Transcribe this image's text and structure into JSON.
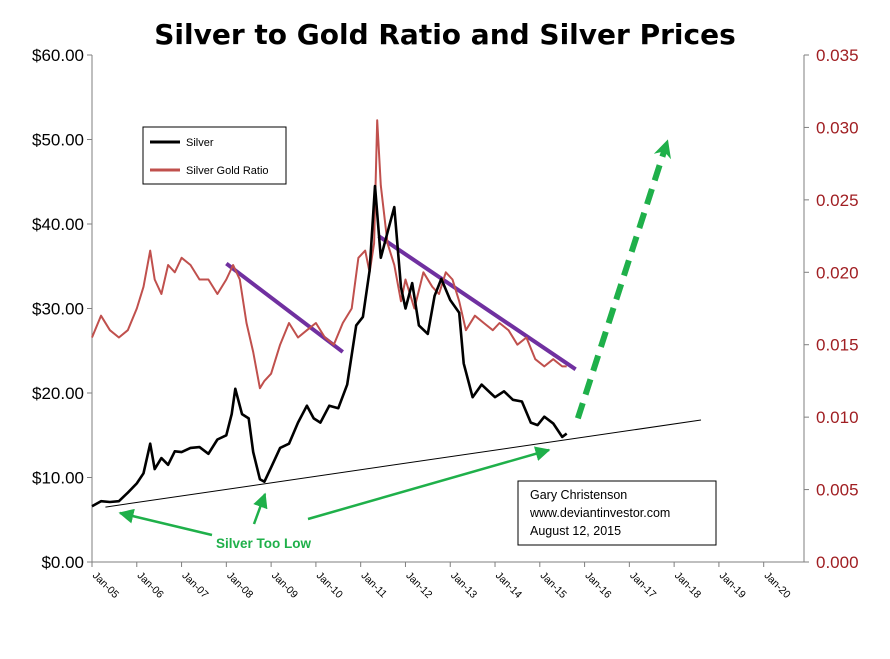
{
  "chart_data": {
    "type": "line",
    "title": "Silver to Gold Ratio and Silver Prices",
    "colors": {
      "silver": "#000000",
      "ratio": "#c0504d",
      "axis_right": "#a01e22",
      "trend_purple": "#7030a0",
      "annotation_green": "#1fb04a"
    },
    "y_left": {
      "ylim": [
        0,
        60
      ],
      "ticks": [
        0,
        10,
        20,
        30,
        40,
        50,
        60
      ],
      "tick_labels": [
        "$0.00",
        "$10.00",
        "$20.00",
        "$30.00",
        "$40.00",
        "$50.00",
        "$60.00"
      ]
    },
    "y_right": {
      "ylim": [
        0,
        0.035
      ],
      "ticks": [
        0,
        0.005,
        0.01,
        0.015,
        0.02,
        0.025,
        0.03,
        0.035
      ],
      "tick_labels": [
        "0.000",
        "0.005",
        "0.010",
        "0.015",
        "0.020",
        "0.025",
        "0.030",
        "0.035"
      ]
    },
    "x_axis": {
      "xlim": [
        2005.0,
        2020.9
      ],
      "ticks": [
        2005,
        2006,
        2007,
        2008,
        2009,
        2010,
        2011,
        2012,
        2013,
        2014,
        2015,
        2016,
        2017,
        2018,
        2019,
        2020
      ],
      "tick_labels": [
        "Jan-05",
        "Jan-06",
        "Jan-07",
        "Jan-08",
        "Jan-09",
        "Jan-10",
        "Jan-11",
        "Jan-12",
        "Jan-13",
        "Jan-14",
        "Jan-15",
        "Jan-16",
        "Jan-17",
        "Jan-18",
        "Jan-19",
        "Jan-20"
      ]
    },
    "legend": {
      "placement": "upper-left",
      "entries": [
        "Silver",
        "Silver Gold Ratio"
      ]
    },
    "series": [
      {
        "name": "Silver",
        "axis": "left",
        "x": [
          2005.0,
          2005.2,
          2005.4,
          2005.6,
          2005.8,
          2006.0,
          2006.15,
          2006.3,
          2006.4,
          2006.55,
          2006.7,
          2006.85,
          2007.0,
          2007.2,
          2007.4,
          2007.6,
          2007.8,
          2008.0,
          2008.12,
          2008.2,
          2008.35,
          2008.5,
          2008.6,
          2008.75,
          2008.85,
          2009.0,
          2009.2,
          2009.4,
          2009.6,
          2009.8,
          2009.95,
          2010.1,
          2010.3,
          2010.5,
          2010.7,
          2010.9,
          2011.05,
          2011.2,
          2011.32,
          2011.45,
          2011.6,
          2011.75,
          2011.9,
          2012.0,
          2012.15,
          2012.3,
          2012.5,
          2012.65,
          2012.8,
          2013.0,
          2013.2,
          2013.3,
          2013.5,
          2013.7,
          2013.9,
          2014.0,
          2014.2,
          2014.4,
          2014.6,
          2014.8,
          2014.95,
          2015.1,
          2015.3,
          2015.5,
          2015.6
        ],
        "values": [
          6.6,
          7.2,
          7.1,
          7.2,
          8.2,
          9.3,
          10.5,
          14.0,
          11.0,
          12.3,
          11.5,
          13.1,
          13.0,
          13.5,
          13.6,
          12.8,
          14.5,
          15.0,
          17.5,
          20.5,
          17.5,
          17.0,
          13.0,
          9.8,
          9.5,
          11.2,
          13.5,
          14.0,
          16.5,
          18.5,
          17.0,
          16.5,
          18.5,
          18.2,
          21.0,
          28.0,
          29.0,
          34.5,
          44.5,
          36.0,
          39.0,
          42.0,
          32.5,
          30.0,
          33.0,
          28.0,
          27.0,
          31.5,
          33.5,
          31.0,
          29.5,
          23.5,
          19.5,
          21.0,
          20.0,
          19.5,
          20.2,
          19.2,
          19.0,
          16.5,
          16.2,
          17.2,
          16.4,
          14.8,
          15.2
        ]
      },
      {
        "name": "Silver Gold Ratio",
        "axis": "right",
        "x": [
          2005.0,
          2005.2,
          2005.4,
          2005.6,
          2005.8,
          2006.0,
          2006.15,
          2006.3,
          2006.4,
          2006.55,
          2006.7,
          2006.85,
          2007.0,
          2007.2,
          2007.4,
          2007.6,
          2007.8,
          2008.0,
          2008.15,
          2008.3,
          2008.45,
          2008.6,
          2008.75,
          2008.85,
          2009.0,
          2009.2,
          2009.4,
          2009.6,
          2009.8,
          2010.0,
          2010.2,
          2010.4,
          2010.6,
          2010.8,
          2010.95,
          2011.1,
          2011.2,
          2011.3,
          2011.37,
          2011.45,
          2011.6,
          2011.75,
          2011.9,
          2012.0,
          2012.2,
          2012.4,
          2012.6,
          2012.75,
          2012.9,
          2013.05,
          2013.2,
          2013.35,
          2013.55,
          2013.75,
          2013.95,
          2014.1,
          2014.3,
          2014.5,
          2014.7,
          2014.9,
          2015.1,
          2015.3,
          2015.5,
          2015.6
        ],
        "values": [
          0.0155,
          0.017,
          0.016,
          0.0155,
          0.016,
          0.0175,
          0.019,
          0.0215,
          0.0195,
          0.0185,
          0.0205,
          0.02,
          0.021,
          0.0205,
          0.0195,
          0.0195,
          0.0185,
          0.0195,
          0.0205,
          0.0195,
          0.0165,
          0.0145,
          0.012,
          0.0125,
          0.013,
          0.015,
          0.0165,
          0.0155,
          0.016,
          0.0165,
          0.0155,
          0.015,
          0.0165,
          0.0175,
          0.021,
          0.0215,
          0.02,
          0.022,
          0.0305,
          0.026,
          0.022,
          0.0205,
          0.018,
          0.0195,
          0.0175,
          0.02,
          0.019,
          0.0185,
          0.02,
          0.0195,
          0.018,
          0.016,
          0.017,
          0.0165,
          0.016,
          0.0165,
          0.016,
          0.015,
          0.0155,
          0.014,
          0.0135,
          0.014,
          0.0135,
          0.0135
        ]
      }
    ],
    "trendlines": [
      {
        "name": "support",
        "color": "#000000",
        "axis": "left",
        "x": [
          2005.3,
          2018.6
        ],
        "values": [
          6.5,
          16.8
        ]
      },
      {
        "name": "ratio-down-1",
        "color": "#7030a0",
        "axis": "right",
        "x": [
          2008.0,
          2010.6
        ],
        "values": [
          0.0206,
          0.0145
        ]
      },
      {
        "name": "ratio-down-2",
        "color": "#7030a0",
        "axis": "right",
        "x": [
          2011.4,
          2015.8
        ],
        "values": [
          0.0225,
          0.0133
        ]
      },
      {
        "name": "projection",
        "color": "#1fb04a",
        "dashed": true,
        "axis": "left",
        "x": [
          2015.85,
          2017.8
        ],
        "values": [
          17.0,
          49.0
        ]
      }
    ],
    "annotations": [
      {
        "text": "Silver Too Low",
        "arrows_to": [
          [
            2005.2,
            6.0
          ],
          [
            2009.0,
            8.5
          ],
          [
            2015.05,
            13.6
          ]
        ]
      }
    ],
    "note": [
      "Gary Christenson",
      "www.deviantinvestor.com",
      "August 12, 2015"
    ]
  }
}
